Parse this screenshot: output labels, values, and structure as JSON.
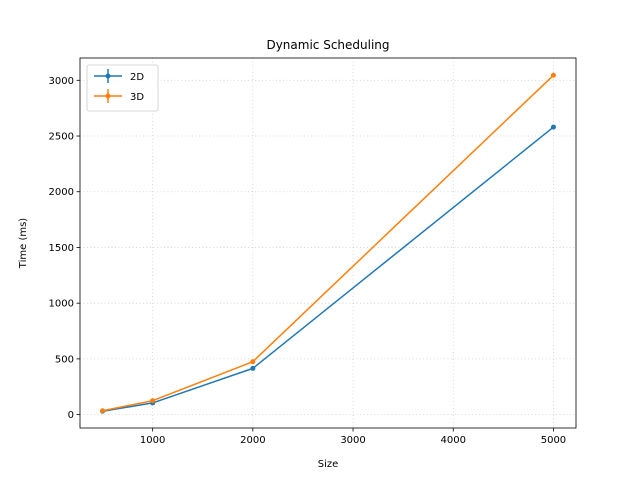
{
  "chart_data": {
    "type": "line",
    "title": "Dynamic Scheduling",
    "xlabel": "Size",
    "ylabel": "Time (ms)",
    "x": [
      500,
      1000,
      2000,
      5000
    ],
    "series": [
      {
        "name": "2D",
        "values": [
          30,
          105,
          415,
          2580
        ],
        "color": "#1f77b4"
      },
      {
        "name": "3D",
        "values": [
          35,
          125,
          475,
          3045
        ],
        "color": "#ff7f0e"
      }
    ],
    "xlim": [
      275,
      5225
    ],
    "ylim": [
      -120,
      3200
    ],
    "xticks": [
      1000,
      2000,
      3000,
      4000,
      5000
    ],
    "yticks": [
      0,
      500,
      1000,
      1500,
      2000,
      2500,
      3000
    ],
    "grid": true,
    "legend_position": "top-left",
    "error_bars": true,
    "marker": "circle"
  }
}
